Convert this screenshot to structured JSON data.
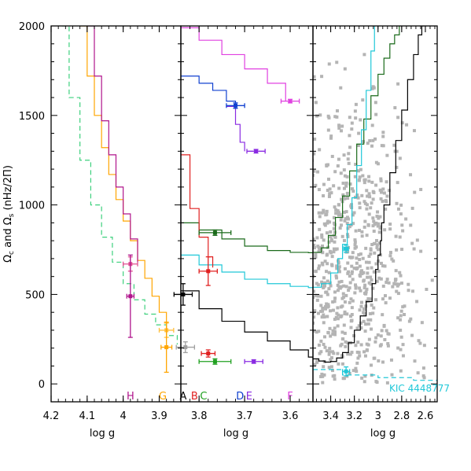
{
  "chart_data": [
    {
      "type": "line",
      "panel": "left",
      "xlabel": "log  g",
      "ylabel_prefix": "Ω",
      "ylabel_sub_c": "c",
      "ylabel_mid": " and ",
      "ylabel_sub_s": "s",
      "ylabel_suffix": " (nHz/2Π)",
      "xlim": [
        4.2,
        3.84
      ],
      "ylim": [
        -100,
        2000
      ],
      "x_tick_values": [
        4.2,
        4.1,
        4.0,
        3.9
      ],
      "x_tick_labels": [
        "4.2",
        "4.1",
        "4",
        "3.9"
      ],
      "y_tick_values": [
        0,
        500,
        1000,
        1500,
        2000
      ],
      "y_tick_labels": [
        "0",
        "500",
        "1000",
        "1500",
        "2000"
      ],
      "star_labels": [
        {
          "text": "H",
          "x": 3.98,
          "color": "#b0148c"
        },
        {
          "text": "G",
          "x": 3.89,
          "color": "#ffa500"
        }
      ],
      "series": [
        {
          "color": "#ffa500",
          "x": [
            4.12,
            4.1,
            4.08,
            4.06,
            4.04,
            4.02,
            4.0,
            3.98,
            3.96,
            3.94,
            3.92,
            3.9,
            3.88
          ],
          "y": [
            2000,
            1720,
            1500,
            1320,
            1170,
            1030,
            910,
            800,
            690,
            590,
            490,
            400,
            310
          ]
        },
        {
          "color": "#b0148c",
          "x": [
            4.1,
            4.08,
            4.06,
            4.04,
            4.02,
            4.0,
            3.98,
            3.96
          ],
          "y": [
            2000,
            1720,
            1470,
            1280,
            1100,
            950,
            810,
            680
          ]
        },
        {
          "color": "#3cd07c",
          "dashed": true,
          "x": [
            4.17,
            4.15,
            4.12,
            4.09,
            4.06,
            4.03,
            4.0,
            3.97,
            3.94,
            3.91,
            3.88,
            3.85
          ],
          "y": [
            2000,
            1600,
            1250,
            1000,
            820,
            680,
            560,
            470,
            390,
            330,
            270,
            220
          ]
        }
      ],
      "points": [
        {
          "x": 3.98,
          "y": 670,
          "color": "#e05090",
          "xerr": 0.02,
          "yerr": 40
        },
        {
          "x": 3.98,
          "y": 490,
          "color": "#b0148c",
          "xerr": 0.01,
          "yerr": 230
        },
        {
          "x": 3.88,
          "y": 300,
          "color": "#ffc040",
          "xerr": 0.02,
          "yerr": 40
        },
        {
          "x": 3.88,
          "y": 205,
          "color": "#ffa500",
          "xerr": 0.015,
          "yerr": 140
        }
      ]
    },
    {
      "type": "line",
      "panel": "middle",
      "xlabel": "log  g",
      "xlim": [
        3.84,
        3.55
      ],
      "ylim": [
        -100,
        2000
      ],
      "x_tick_values": [
        3.8,
        3.7,
        3.6
      ],
      "x_tick_labels": [
        "3.8",
        "3.7",
        "3.6"
      ],
      "star_labels": [
        {
          "text": "A",
          "x": 3.835,
          "color": "#000000"
        },
        {
          "text": "B",
          "x": 3.81,
          "color": "#e02020"
        },
        {
          "text": "C",
          "x": 3.79,
          "color": "#20a020"
        },
        {
          "text": "D",
          "x": 3.71,
          "color": "#1040d0"
        },
        {
          "text": "E",
          "x": 3.69,
          "color": "#8a2be2"
        },
        {
          "text": "F",
          "x": 3.6,
          "color": "#e040e0"
        }
      ],
      "series": [
        {
          "color": "#1a6a1a",
          "x": [
            3.84,
            3.8,
            3.75,
            3.7,
            3.65,
            3.6,
            3.56,
            3.55
          ],
          "y": [
            900,
            860,
            810,
            770,
            745,
            735,
            733,
            735
          ]
        },
        {
          "color": "#20c8d8",
          "x": [
            3.84,
            3.8,
            3.75,
            3.7,
            3.65,
            3.6,
            3.56,
            3.55
          ],
          "y": [
            720,
            665,
            625,
            585,
            560,
            545,
            538,
            540
          ]
        },
        {
          "color": "#000000",
          "x": [
            3.84,
            3.8,
            3.75,
            3.7,
            3.65,
            3.6,
            3.56,
            3.55
          ],
          "y": [
            520,
            420,
            350,
            290,
            240,
            190,
            150,
            140
          ]
        },
        {
          "color": "#e02020",
          "x": [
            3.84,
            3.82,
            3.8,
            3.78,
            3.77
          ],
          "y": [
            1280,
            980,
            820,
            710,
            650
          ]
        },
        {
          "color": "#1040d0",
          "x": [
            3.84,
            3.8,
            3.77,
            3.74,
            3.72
          ],
          "y": [
            1720,
            1680,
            1640,
            1580,
            1550
          ]
        },
        {
          "color": "#8a2be2",
          "x": [
            3.74,
            3.72,
            3.71,
            3.7
          ],
          "y": [
            1550,
            1450,
            1350,
            1300
          ]
        },
        {
          "color": "#e040e0",
          "x": [
            3.84,
            3.8,
            3.75,
            3.7,
            3.65,
            3.61
          ],
          "y": [
            1990,
            1920,
            1840,
            1760,
            1680,
            1580
          ]
        }
      ],
      "points": [
        {
          "x": 3.835,
          "y": 500,
          "color": "#000000",
          "xerr": 0.02,
          "yerr": 60
        },
        {
          "x": 3.83,
          "y": 205,
          "color": "#a0a0a0",
          "xerr": 0.02,
          "yerr": 30
        },
        {
          "x": 3.78,
          "y": 630,
          "color": "#e02020",
          "xerr": 0.02,
          "yerr": 80
        },
        {
          "x": 3.78,
          "y": 170,
          "color": "#e02020",
          "xerr": 0.015,
          "yerr": 20
        },
        {
          "x": 3.765,
          "y": 845,
          "color": "#1a6a1a",
          "xerr": 0.035,
          "yerr": 15
        },
        {
          "x": 3.765,
          "y": 125,
          "color": "#20a020",
          "xerr": 0.035,
          "yerr": 15
        },
        {
          "x": 3.72,
          "y": 1555,
          "color": "#1040d0",
          "xerr": 0.02,
          "yerr": 15
        },
        {
          "x": 3.68,
          "y": 125,
          "color": "#8a2be2",
          "xerr": 0.02,
          "yerr": 10
        },
        {
          "x": 3.675,
          "y": 1300,
          "color": "#8a2be2",
          "xerr": 0.02,
          "yerr": 10
        },
        {
          "x": 3.6,
          "y": 1580,
          "color": "#e040e0",
          "xerr": 0.02,
          "yerr": 10
        }
      ]
    },
    {
      "type": "line",
      "panel": "right",
      "xlabel": "log  g",
      "xlim": [
        3.55,
        2.5
      ],
      "ylim": [
        -100,
        2000
      ],
      "x_tick_values": [
        3.4,
        3.2,
        3.0,
        2.8,
        2.6
      ],
      "x_tick_labels": [
        "3.4",
        "3.2",
        "3",
        "2.8",
        "2.6"
      ],
      "annotation": {
        "text": "KIC 4448777",
        "color": "#20c8d8"
      },
      "series": [
        {
          "color": "#1a6a1a",
          "x": [
            3.55,
            3.48,
            3.42,
            3.36,
            3.3,
            3.24,
            3.18,
            3.12,
            3.06,
            3.0,
            2.95,
            2.9,
            2.86,
            2.82
          ],
          "y": [
            735,
            760,
            830,
            930,
            1050,
            1190,
            1340,
            1480,
            1610,
            1730,
            1820,
            1900,
            1950,
            2000
          ]
        },
        {
          "color": "#20c8d8",
          "x": [
            3.55,
            3.48,
            3.4,
            3.34,
            3.3,
            3.26,
            3.22,
            3.18,
            3.14,
            3.1,
            3.06,
            3.03
          ],
          "y": [
            540,
            560,
            620,
            700,
            780,
            890,
            1040,
            1220,
            1420,
            1640,
            1860,
            2000
          ]
        },
        {
          "color": "#000000",
          "x": [
            3.55,
            3.5,
            3.45,
            3.4,
            3.35,
            3.3,
            3.25,
            3.2,
            3.15,
            3.1,
            3.05,
            3.02,
            3.0,
            2.98,
            2.97,
            2.95,
            2.9,
            2.85,
            2.8,
            2.75,
            2.7,
            2.66,
            2.63,
            2.61
          ],
          "y": [
            140,
            128,
            122,
            125,
            145,
            175,
            230,
            300,
            380,
            460,
            560,
            640,
            720,
            800,
            900,
            1000,
            1180,
            1360,
            1530,
            1700,
            1840,
            1950,
            2000,
            2000
          ]
        },
        {
          "color": "#20c8d8",
          "dashed": true,
          "x": [
            3.55,
            3.3,
            3.0,
            2.7,
            2.5
          ],
          "y": [
            80,
            50,
            35,
            20,
            15
          ]
        }
      ],
      "points": [
        {
          "x": 3.27,
          "y": 755,
          "color": "#20c8d8",
          "xerr": 0.02,
          "yerr": 20
        },
        {
          "x": 3.27,
          "y": 70,
          "color": "#20c8d8",
          "xerr": 0.03,
          "yerr": 25
        }
      ],
      "background_scatter": {
        "color": "#b4b4b4",
        "count": 900,
        "x_center": 3.25,
        "y_center": 620
      }
    }
  ]
}
